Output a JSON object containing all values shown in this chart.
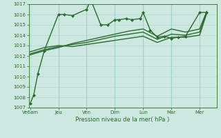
{
  "xlabel": "Pression niveau de la mer( hPa )",
  "ylim": [
    1007,
    1017
  ],
  "yticks": [
    1007,
    1008,
    1009,
    1010,
    1011,
    1012,
    1013,
    1014,
    1015,
    1016,
    1017
  ],
  "xtick_labels": [
    "Ve6am",
    "Jeu",
    "Ven",
    "Dim",
    "Lun",
    "Mar",
    "Mer"
  ],
  "xtick_positions": [
    0,
    2,
    4,
    6,
    8,
    10,
    12
  ],
  "xlim": [
    -0.1,
    13.2
  ],
  "background_color": "#cce8e0",
  "grid_color": "#aad4cc",
  "line_color": "#2d6a2d",
  "lines": [
    {
      "x": [
        0.0,
        0.25,
        0.55,
        1.0,
        2.0,
        2.4,
        3.0,
        4.0,
        4.3,
        5.0,
        5.5,
        6.0,
        6.3,
        6.8,
        7.2,
        7.8,
        8.0,
        8.5,
        9.0,
        9.5,
        10.0,
        10.5,
        11.0,
        12.0,
        12.5
      ],
      "y": [
        1007.4,
        1008.2,
        1010.3,
        1012.5,
        1016.0,
        1016.0,
        1015.9,
        1016.5,
        1017.4,
        1015.0,
        1015.0,
        1015.5,
        1015.5,
        1015.6,
        1015.5,
        1015.6,
        1016.2,
        1014.5,
        1013.8,
        1013.9,
        1013.7,
        1013.8,
        1013.9,
        1016.2,
        1016.2
      ],
      "color": "#2d6a2d",
      "linewidth": 1.0,
      "marker": "D",
      "markersize": 2.0
    },
    {
      "x": [
        0.0,
        1.0,
        2.0,
        3.0,
        4.0,
        5.0,
        6.0,
        7.0,
        8.0,
        9.0,
        10.0,
        11.0,
        12.0,
        12.5
      ],
      "y": [
        1012.4,
        1012.8,
        1013.0,
        1012.9,
        1013.1,
        1013.3,
        1013.5,
        1013.7,
        1013.9,
        1013.3,
        1013.8,
        1013.8,
        1014.0,
        1016.1
      ],
      "color": "#2d6a2d",
      "linewidth": 1.0,
      "marker": null
    },
    {
      "x": [
        0.0,
        1.0,
        2.0,
        3.0,
        4.0,
        5.0,
        6.0,
        7.0,
        8.0,
        9.0,
        10.0,
        11.0,
        12.0,
        12.5
      ],
      "y": [
        1012.2,
        1012.6,
        1012.9,
        1013.1,
        1013.3,
        1013.6,
        1013.9,
        1014.1,
        1014.3,
        1013.6,
        1014.1,
        1014.0,
        1014.3,
        1016.2
      ],
      "color": "#2d6a2d",
      "linewidth": 1.0,
      "marker": null
    },
    {
      "x": [
        0.0,
        1.0,
        2.0,
        3.0,
        4.0,
        5.0,
        6.0,
        7.0,
        8.0,
        9.0,
        10.0,
        11.0,
        12.0,
        12.5
      ],
      "y": [
        1012.1,
        1012.5,
        1012.8,
        1013.2,
        1013.5,
        1013.8,
        1014.1,
        1014.4,
        1014.6,
        1013.9,
        1014.6,
        1014.3,
        1014.6,
        1016.3
      ],
      "color": "#2d6a2d",
      "linewidth": 1.0,
      "marker": null
    }
  ],
  "vlines_x": [
    2,
    4,
    6,
    8,
    10,
    12
  ],
  "vline_color": "#99ccbb"
}
